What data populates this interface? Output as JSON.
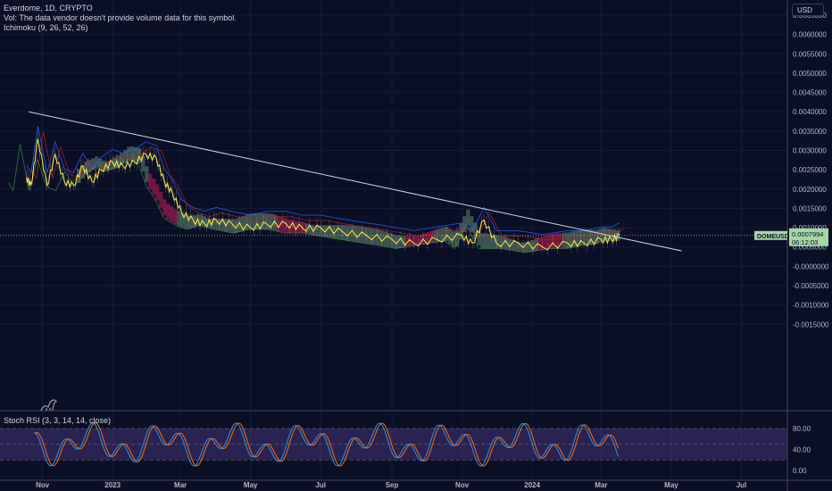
{
  "legend": {
    "title": "Everdome, 1D, CRYPTO",
    "vol_note": "Vol: The data vendor doesn't provide volume data for this symbol.",
    "ichimoku": "Ichimoku (9, 26, 52, 26)",
    "stoch": "Stoch RSI (3, 3, 14, 14, close)"
  },
  "currency": "USD",
  "price_scale": [
    "0.0065000",
    "0.0060000",
    "0.0055000",
    "0.0050000",
    "0.0045000",
    "0.0040000",
    "0.0035000",
    "0.0030000",
    "0.0025000",
    "0.0020000",
    "0.0015000",
    "0.0010000",
    "0.0005000",
    "-0.0000000",
    "-0.0005000",
    "-0.0010000",
    "-0.0015000"
  ],
  "price_tag": {
    "symbol": "DOMEUSD",
    "price": "0.0007994",
    "countdown": "06:12:03"
  },
  "stoch_scale": [
    "80.00",
    "40.00",
    "0.00"
  ],
  "time_axis": [
    "Nov",
    "2023",
    "Mar",
    "May",
    "Jul",
    "Sep",
    "Nov",
    "2024",
    "Mar",
    "May",
    "Jul"
  ],
  "colors": {
    "background": "#0b0f26",
    "price_line": "#ffeb3b",
    "tenkan": "#2962ff",
    "kijun": "#b71c1c",
    "lagging": "#43a047",
    "cloud_bull": "#a5d6a7",
    "cloud_bear": "#e91e63",
    "stoch_k": "#2196f3",
    "stoch_d": "#ff6d00",
    "stoch_band": "#7e57c2",
    "trendline": "#d1d4dc",
    "price_tag": "#a5d6a7"
  },
  "chart_data": {
    "type": "line",
    "title": "Everdome, 1D, CRYPTO",
    "xlabel": "",
    "ylabel": "",
    "ylim": [
      -0.0015,
      0.0068
    ],
    "grid": true,
    "series": [
      {
        "name": "Close",
        "x": [
          "2022-10-18",
          "2022-10-22",
          "2022-10-28",
          "2022-11-05",
          "2022-11-12",
          "2022-11-20",
          "2022-11-28",
          "2022-12-06",
          "2022-12-14",
          "2022-12-22",
          "2023-01-01",
          "2023-01-10",
          "2023-01-20",
          "2023-01-30",
          "2023-02-08",
          "2023-02-15",
          "2023-02-22",
          "2023-03-02",
          "2023-03-12",
          "2023-03-22",
          "2023-04-01",
          "2023-04-15",
          "2023-05-01",
          "2023-05-15",
          "2023-06-01",
          "2023-06-15",
          "2023-07-01",
          "2023-07-20",
          "2023-08-10",
          "2023-09-01",
          "2023-09-20",
          "2023-10-10",
          "2023-11-01",
          "2023-11-10",
          "2023-11-20",
          "2023-12-01",
          "2023-12-20",
          "2024-01-10",
          "2024-02-01",
          "2024-02-15",
          "2024-03-01",
          "2024-03-10",
          "2024-03-17"
        ],
        "values": [
          0.0023,
          0.0021,
          0.0033,
          0.0021,
          0.0029,
          0.0022,
          0.0021,
          0.0026,
          0.0022,
          0.0025,
          0.0027,
          0.0026,
          0.0027,
          0.0029,
          0.0028,
          0.0022,
          0.0019,
          0.0014,
          0.0012,
          0.0011,
          0.0012,
          0.0011,
          0.001,
          0.0011,
          0.0011,
          0.001,
          0.001,
          0.0009,
          0.0008,
          0.0007,
          0.0006,
          0.0007,
          0.0008,
          0.0006,
          0.0012,
          0.0006,
          0.0006,
          0.0005,
          0.0006,
          0.0006,
          0.0007,
          0.0007,
          0.0008
        ]
      },
      {
        "name": "Descending trendline",
        "x": [
          "2022-10-20",
          "2024-05-10"
        ],
        "values": [
          0.004,
          0.0004
        ]
      }
    ],
    "last_price": 0.0007994,
    "stoch_rsi": {
      "ylim": [
        0,
        100
      ],
      "bands": [
        20,
        50,
        80
      ]
    }
  }
}
